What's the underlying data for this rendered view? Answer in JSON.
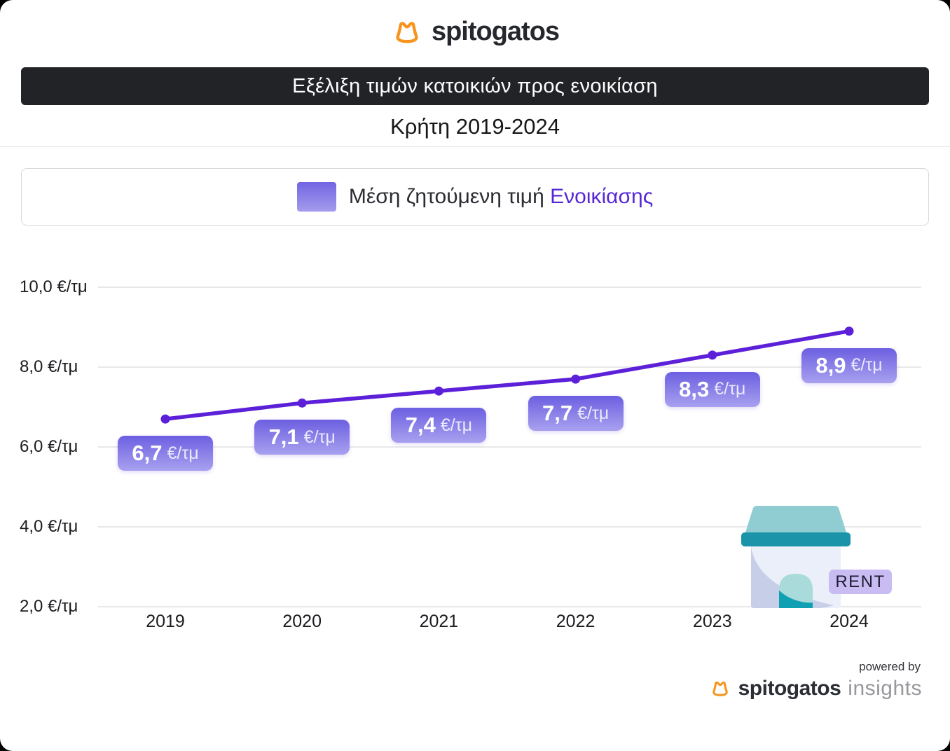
{
  "brand": {
    "logo_text": "spitogatos",
    "orange": "#f7941d"
  },
  "header": {
    "title": "Εξέλιξη τιμών κατοικιών προς ενοικίαση",
    "subtitle": "Κρήτη 2019-2024"
  },
  "legend": {
    "label_prefix": "Μέση ζητούμενη τιμή ",
    "label_highlight": "Ενοικίασης"
  },
  "chart_data": {
    "type": "line",
    "title": "Εξέλιξη τιμών κατοικιών προς ενοικίαση",
    "subtitle": "Κρήτη 2019-2024",
    "legend": [
      "Μέση ζητούμενη τιμή Ενοικίασης"
    ],
    "legend_position": "top",
    "x": [
      2019,
      2020,
      2021,
      2022,
      2023,
      2024
    ],
    "values": [
      6.7,
      7.1,
      7.4,
      7.7,
      8.3,
      8.9
    ],
    "point_labels": [
      "6,7",
      "7,1",
      "7,4",
      "7,7",
      "8,3",
      "8,9"
    ],
    "unit": "€/τμ",
    "ylabel": "",
    "xlabel": "",
    "ylim": [
      2,
      10
    ],
    "y_ticks": [
      10,
      8,
      6,
      4,
      2
    ],
    "y_tick_labels": [
      "10,0 €/τμ",
      "8,0 €/τμ",
      "6,0 €/τμ",
      "4,0 €/τμ",
      "2,0 €/τμ"
    ],
    "grid": true,
    "line_color": "#5c20d9",
    "badge_gradient": [
      "#6c5fe1",
      "#a8a1ef"
    ]
  },
  "house": {
    "badge_label": "RENT"
  },
  "footer": {
    "powered_by": "powered by",
    "brand": "spitogatos",
    "suffix": "insights"
  }
}
